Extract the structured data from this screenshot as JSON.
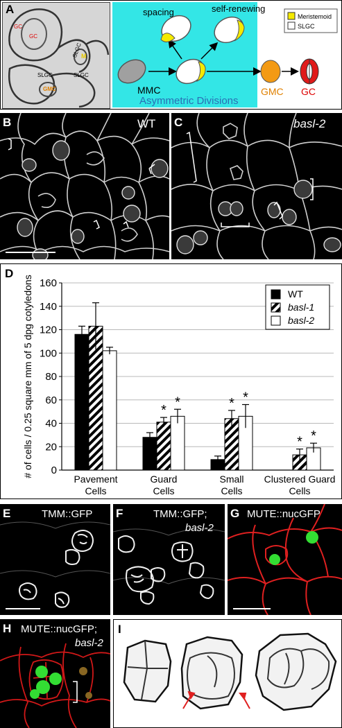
{
  "panel_a": {
    "letter": "A",
    "labels": {
      "gc": "GC",
      "slgc": "SLGC",
      "m": "M",
      "gmc": "GMC"
    },
    "diagram": {
      "spacing": "spacing",
      "self_renewing": "self-renewing",
      "mmc": "MMC",
      "asym": "Asymmetric Divisions",
      "gmc": "GMC",
      "gc": "GC",
      "legend_meristemoid": "Meristemoid",
      "legend_slgc": "SLGC"
    }
  },
  "panel_b": {
    "letter": "B",
    "title": "WT"
  },
  "panel_c": {
    "letter": "C",
    "title": "basl-2"
  },
  "panel_d": {
    "letter": "D"
  },
  "panel_e": {
    "letter": "E",
    "title": "TMM::GFP"
  },
  "panel_f": {
    "letter": "F",
    "title_1": "TMM::GFP;",
    "title_2": "basl-2"
  },
  "panel_g": {
    "letter": "G",
    "title": "MUTE::nucGFP"
  },
  "panel_h": {
    "letter": "H",
    "title_1": "MUTE::nucGFP;",
    "title_2": "basl-2"
  },
  "panel_i": {
    "letter": "I"
  },
  "chart_data": {
    "type": "bar",
    "ylabel": "# of cells / 0.25 square mm of 5 dpg cotyledons",
    "ylim": [
      0,
      160
    ],
    "yticks": [
      0,
      20,
      40,
      60,
      80,
      100,
      120,
      140,
      160
    ],
    "grid": true,
    "legend_position": "top-right",
    "categories": [
      "Pavement Cells",
      "Guard Cells",
      "Small Cells",
      "Clustered Guard Cells"
    ],
    "series": [
      {
        "name": "WT",
        "values": [
          116,
          28,
          9,
          0
        ],
        "errors": [
          7,
          4,
          3,
          0
        ],
        "significant": [
          false,
          false,
          false,
          false
        ],
        "fill": "#000000"
      },
      {
        "name": "basl-1",
        "values": [
          123,
          41,
          44,
          13
        ],
        "errors": [
          20,
          4,
          7,
          5
        ],
        "significant": [
          false,
          true,
          true,
          true
        ],
        "fill": "hatch"
      },
      {
        "name": "basl-2",
        "values": [
          102,
          46,
          46,
          19
        ],
        "errors": [
          3,
          6,
          10,
          4
        ],
        "significant": [
          false,
          true,
          true,
          true
        ],
        "fill": "#ffffff"
      }
    ],
    "significance_mark": "*"
  }
}
